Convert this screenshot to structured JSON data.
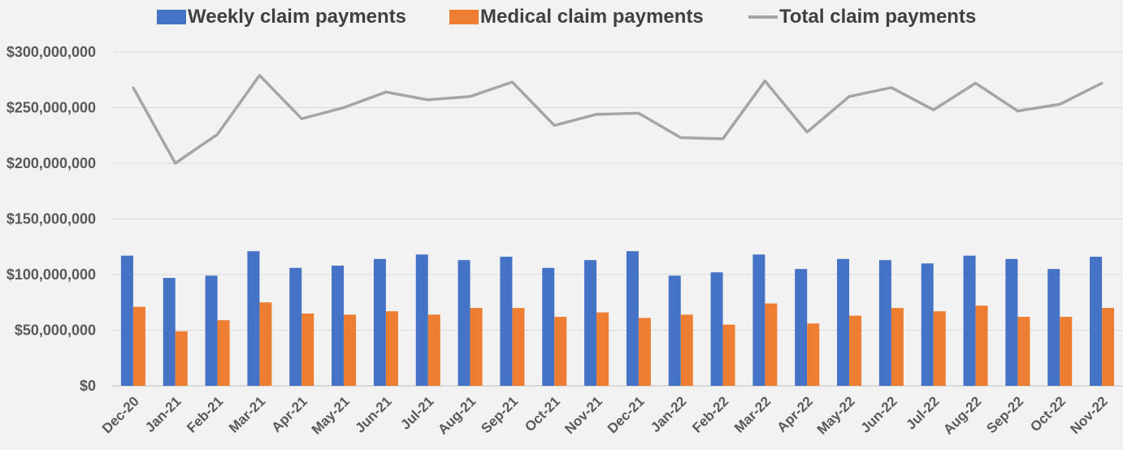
{
  "chart_data": {
    "type": "bar",
    "categories": [
      "Dec-20",
      "Jan-21",
      "Feb-21",
      "Mar-21",
      "Apr-21",
      "May-21",
      "Jun-21",
      "Jul-21",
      "Aug-21",
      "Sep-21",
      "Oct-21",
      "Nov-21",
      "Dec-21",
      "Jan-22",
      "Feb-22",
      "Mar-22",
      "Apr-22",
      "May-22",
      "Jun-22",
      "Jul-22",
      "Aug-22",
      "Sep-22",
      "Oct-22",
      "Nov-22"
    ],
    "series": [
      {
        "name": "Weekly claim payments",
        "type": "bar",
        "color": "#4472c4",
        "values": [
          117000000,
          97000000,
          99000000,
          121000000,
          106000000,
          108000000,
          114000000,
          118000000,
          113000000,
          116000000,
          106000000,
          113000000,
          121000000,
          99000000,
          102000000,
          118000000,
          105000000,
          114000000,
          113000000,
          110000000,
          117000000,
          114000000,
          105000000,
          116000000
        ]
      },
      {
        "name": "Medical claim payments",
        "type": "bar",
        "color": "#ed7d31",
        "values": [
          71000000,
          49000000,
          59000000,
          75000000,
          65000000,
          64000000,
          67000000,
          64000000,
          70000000,
          70000000,
          62000000,
          66000000,
          61000000,
          64000000,
          55000000,
          74000000,
          56000000,
          63000000,
          70000000,
          67000000,
          72000000,
          62000000,
          62000000,
          70000000
        ]
      },
      {
        "name": "Total claim payments",
        "type": "line",
        "color": "#a5a5a5",
        "values": [
          268000000,
          200000000,
          226000000,
          279000000,
          240000000,
          250000000,
          264000000,
          257000000,
          260000000,
          273000000,
          234000000,
          244000000,
          245000000,
          223000000,
          222000000,
          274000000,
          228000000,
          260000000,
          268000000,
          248000000,
          272000000,
          247000000,
          253000000,
          272000000
        ]
      }
    ],
    "ylim": [
      0,
      300000000
    ],
    "yticks": [
      "$0",
      "$50,000,000",
      "$100,000,000",
      "$150,000,000",
      "$200,000,000",
      "$250,000,000",
      "$300,000,000"
    ],
    "grid": true,
    "legend_position": "top"
  }
}
